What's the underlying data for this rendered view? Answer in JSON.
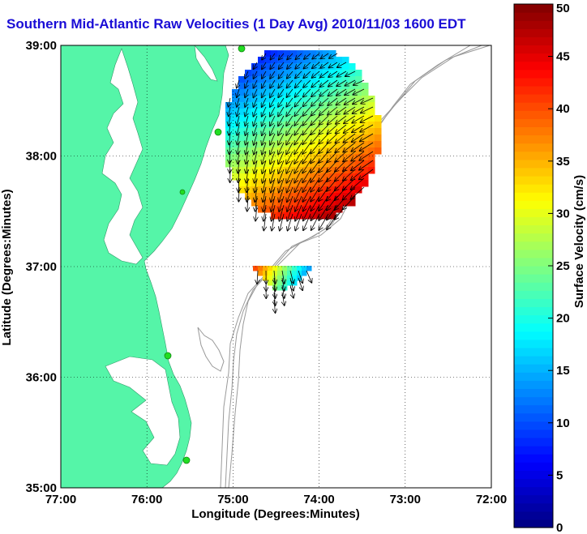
{
  "title": "Southern Mid-Atlantic Raw Velocities (1 Day Avg) 2010/11/03 1600 EDT",
  "map": {
    "xlabel": "Longitude (Degrees:Minutes)",
    "ylabel": "Latitude (Degrees:Minutes)",
    "lon_range": [
      -77,
      -72
    ],
    "lat_range": [
      35,
      39
    ],
    "x_ticks": [
      {
        "value": -77,
        "label": "77:00"
      },
      {
        "value": -76,
        "label": "76:00"
      },
      {
        "value": -75,
        "label": "75:00"
      },
      {
        "value": -74,
        "label": "74:00"
      },
      {
        "value": -73,
        "label": "73:00"
      },
      {
        "value": -72,
        "label": "72:00"
      }
    ],
    "y_ticks": [
      {
        "value": 39,
        "label": "39:00"
      },
      {
        "value": 38,
        "label": "38:00"
      },
      {
        "value": 37,
        "label": "37:00"
      },
      {
        "value": 36,
        "label": "36:00"
      },
      {
        "value": 35,
        "label": "35:00"
      }
    ],
    "grid": "dotted",
    "land_color": "#55f5a8",
    "isobath_color": "#999999",
    "station_color": "#22dd22"
  },
  "colorbar": {
    "label": "Surface Velocity (cm/s)",
    "min": 0,
    "max": 50,
    "ticks": [
      {
        "value": 0,
        "label": "0"
      },
      {
        "value": 5,
        "label": "5"
      },
      {
        "value": 10,
        "label": "10"
      },
      {
        "value": 15,
        "label": "15"
      },
      {
        "value": 20,
        "label": "20"
      },
      {
        "value": 25,
        "label": "25"
      },
      {
        "value": 30,
        "label": "30"
      },
      {
        "value": 35,
        "label": "35"
      },
      {
        "value": 40,
        "label": "40"
      },
      {
        "value": 45,
        "label": "45"
      },
      {
        "value": 50,
        "label": "50"
      }
    ],
    "levels": 64
  }
}
